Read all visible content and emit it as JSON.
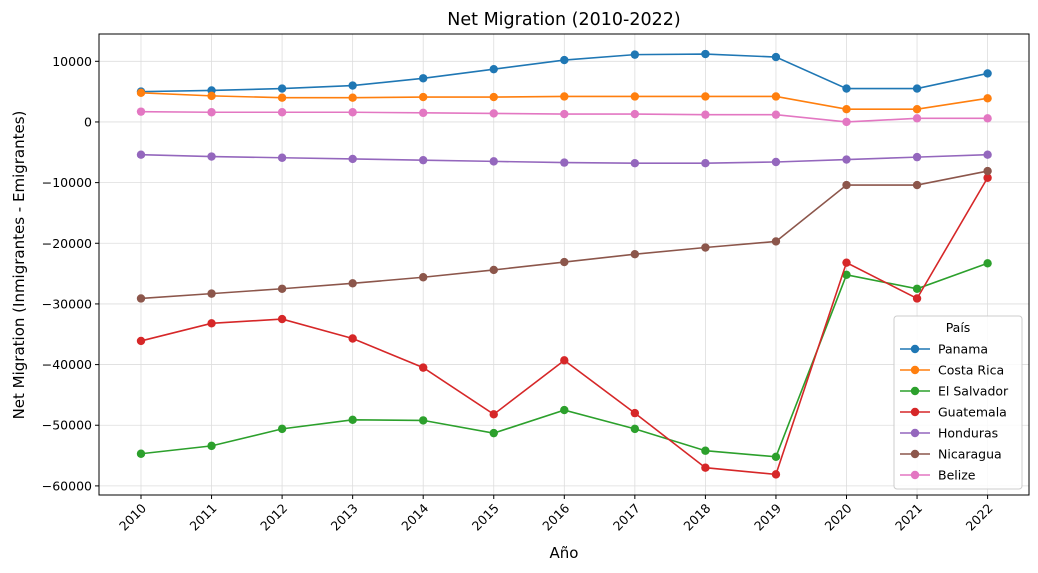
{
  "chart_data": {
    "type": "line",
    "title": "Net Migration (2010-2022)",
    "xlabel": "Año",
    "ylabel": "Net Migration (Inmigrantes - Emigrantes)",
    "ylim": [
      -61500,
      14500
    ],
    "yticks": [
      10000,
      0,
      -10000,
      -20000,
      -30000,
      -40000,
      -50000,
      -60000
    ],
    "ytick_labels": [
      "10000",
      "0",
      "−10000",
      "−20000",
      "−30000",
      "−40000",
      "−50000",
      "−60000"
    ],
    "x": [
      "2010",
      "2011",
      "2012",
      "2013",
      "2014",
      "2015",
      "2016",
      "2017",
      "2018",
      "2019",
      "2020",
      "2021",
      "2022"
    ],
    "grid": true,
    "legend_title": "País",
    "legend_position": "bottom-right",
    "series": [
      {
        "name": "Panama",
        "color": "#1f77b4",
        "values": [
          5000,
          5200,
          5500,
          6000,
          7200,
          8700,
          10200,
          11100,
          11200,
          10700,
          5500,
          5500,
          8000
        ]
      },
      {
        "name": "Costa Rica",
        "color": "#ff7f0e",
        "values": [
          4800,
          4300,
          4000,
          4000,
          4100,
          4100,
          4200,
          4200,
          4200,
          4200,
          2100,
          2100,
          3900
        ]
      },
      {
        "name": "El Salvador",
        "color": "#2ca02c",
        "values": [
          -54700,
          -53400,
          -50600,
          -49100,
          -49200,
          -51300,
          -47500,
          -50600,
          -54200,
          -55200,
          -25200,
          -27500,
          -23300
        ]
      },
      {
        "name": "Guatemala",
        "color": "#d62728",
        "values": [
          -36100,
          -33200,
          -32500,
          -35700,
          -40500,
          -48200,
          -39300,
          -48000,
          -57000,
          -58100,
          -23200,
          -29100,
          -9200
        ]
      },
      {
        "name": "Honduras",
        "color": "#9467bd",
        "values": [
          -5400,
          -5700,
          -5900,
          -6100,
          -6300,
          -6500,
          -6700,
          -6800,
          -6800,
          -6600,
          -6200,
          -5800,
          -5400
        ]
      },
      {
        "name": "Nicaragua",
        "color": "#8c564b",
        "values": [
          -29100,
          -28300,
          -27500,
          -26600,
          -25600,
          -24400,
          -23100,
          -21800,
          -20700,
          -19700,
          -10400,
          -10400,
          -8100
        ]
      },
      {
        "name": "Belize",
        "color": "#e377c2",
        "values": [
          1700,
          1600,
          1600,
          1600,
          1500,
          1400,
          1300,
          1300,
          1200,
          1200,
          0,
          600,
          600
        ]
      }
    ]
  }
}
